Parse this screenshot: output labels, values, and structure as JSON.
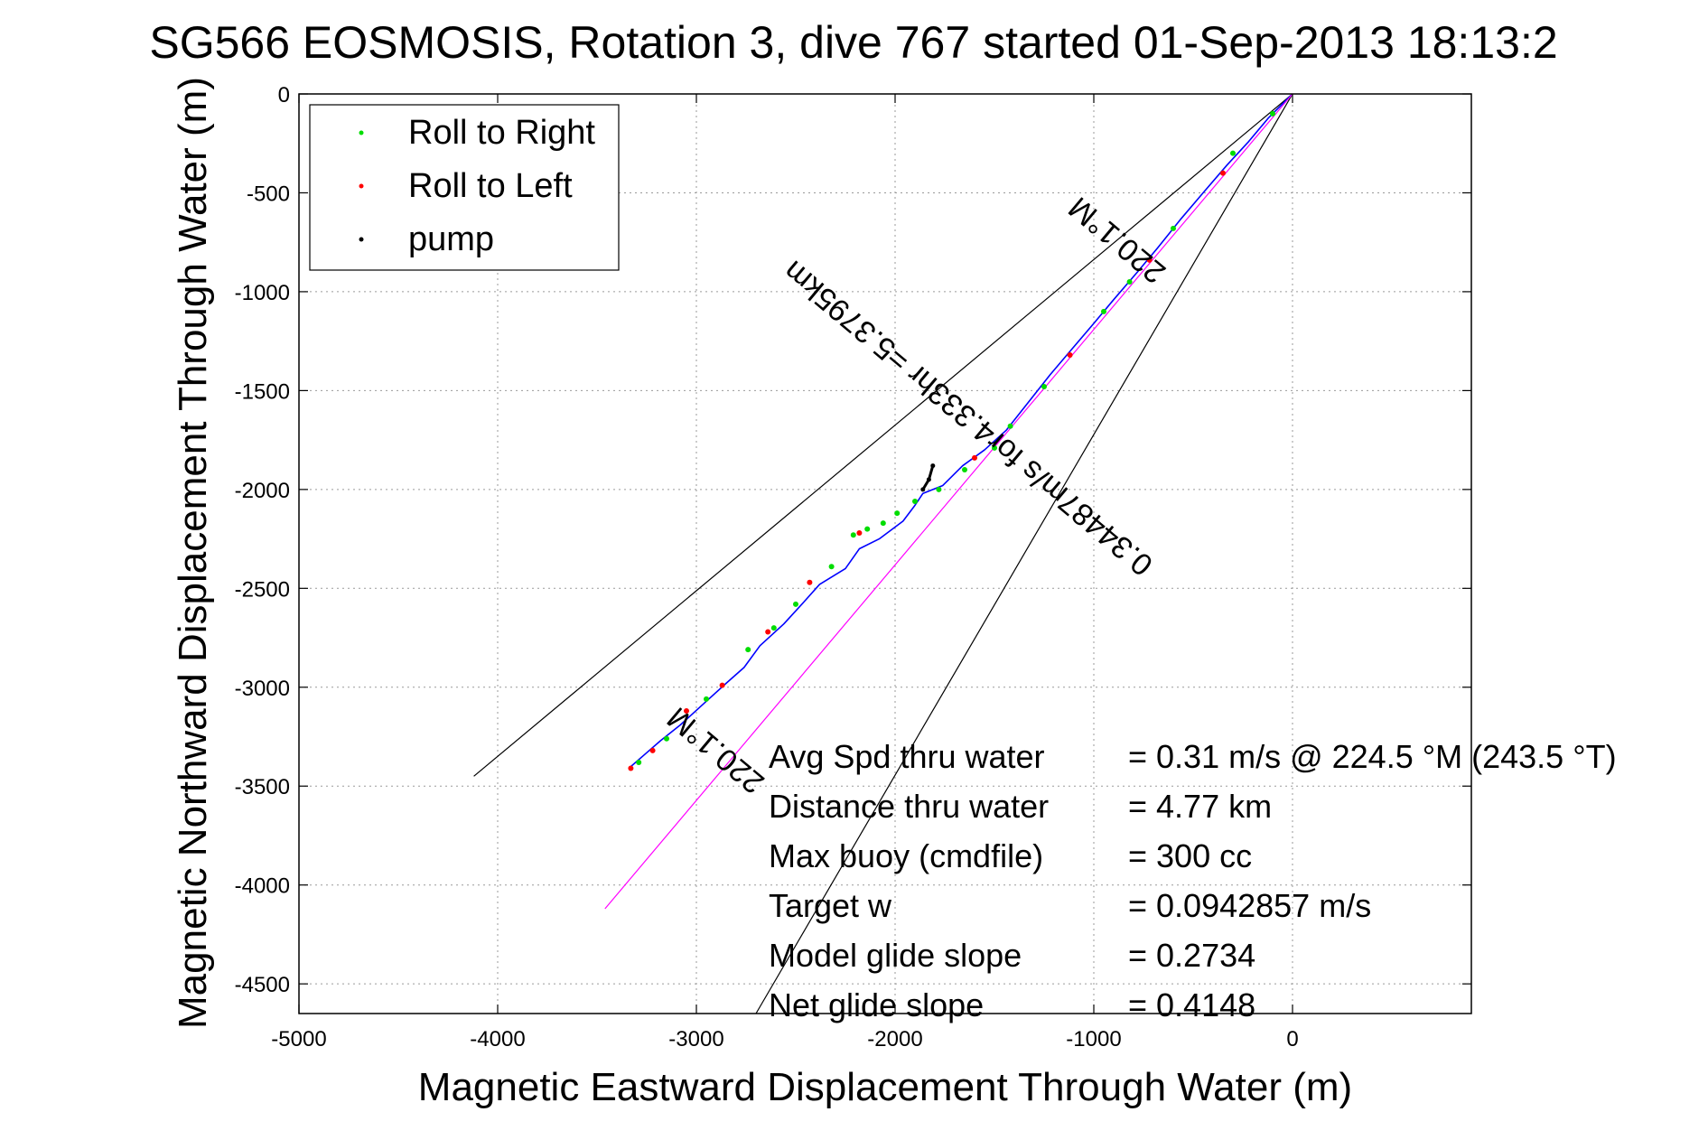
{
  "chart_data": {
    "type": "line",
    "title": "SG566 EOSMOSIS, Rotation 3, dive 767 started 01-Sep-2013 18:13:2",
    "xlabel": "Magnetic Eastward Displacement Through Water (m)",
    "ylabel": "Magnetic Northward Displacement Through Water (m)",
    "xlim": [
      -5000,
      900
    ],
    "ylim": [
      -4650,
      0
    ],
    "xticks": [
      -5000,
      -4000,
      -3000,
      -2000,
      -1000,
      0
    ],
    "xtick_labels": [
      "-5000",
      "-4000",
      "-3000",
      "-2000",
      "-1000",
      "0"
    ],
    "yticks": [
      0,
      -500,
      -1000,
      -1500,
      -2000,
      -2500,
      -3000,
      -3500,
      -4000,
      -4500
    ],
    "ytick_labels": [
      "0",
      "-500",
      "-1000",
      "-1500",
      "-2000",
      "-2500",
      "-3000",
      "-3500",
      "-4000",
      "-4500"
    ],
    "grid": true,
    "legend": {
      "position": "top-left",
      "entries": [
        {
          "label": "Roll to Right",
          "color": "#00dd00"
        },
        {
          "label": "Roll to Left",
          "color": "#ff0000"
        },
        {
          "label": "pump",
          "color": "#000000"
        }
      ]
    },
    "series": [
      {
        "role": "track",
        "color": "#0000ff",
        "x": [
          0,
          -120,
          -220,
          -330,
          -450,
          -560,
          -680,
          -780,
          -900,
          -1000,
          -1110,
          -1220,
          -1330,
          -1440,
          -1550,
          -1660,
          -1760,
          -1860,
          -1900,
          -1960,
          -2080,
          -2180,
          -2250,
          -2380,
          -2460,
          -2560,
          -2680,
          -2760,
          -2850,
          -2960,
          -3080,
          -3180,
          -3260,
          -3340
        ],
        "y": [
          0,
          -120,
          -240,
          -360,
          -500,
          -630,
          -780,
          -900,
          -1040,
          -1160,
          -1290,
          -1420,
          -1560,
          -1700,
          -1800,
          -1880,
          -1980,
          -2020,
          -2080,
          -2160,
          -2250,
          -2300,
          -2400,
          -2480,
          -2570,
          -2680,
          -2790,
          -2900,
          -2980,
          -3080,
          -3190,
          -3270,
          -3340,
          -3410
        ]
      },
      {
        "role": "average-velocity-line",
        "color": "#ff00ff",
        "x": [
          0,
          -3460
        ],
        "y": [
          0,
          -4120
        ]
      },
      {
        "role": "cone-left",
        "color": "#000000",
        "x": [
          0,
          -4120
        ],
        "y": [
          0,
          -3450
        ]
      },
      {
        "role": "cone-right",
        "color": "#000000",
        "x": [
          0,
          -2700
        ],
        "y": [
          0,
          -4650
        ]
      }
    ],
    "markers": {
      "roll_right": {
        "color": "#00dd00",
        "x": [
          -100,
          -300,
          -600,
          -820,
          -950,
          -1250,
          -1420,
          -1500,
          -1650,
          -1780,
          -1900,
          -1990,
          -2060,
          -2140,
          -2210,
          -2320,
          -2500,
          -2610,
          -2740,
          -2950,
          -3150,
          -3290
        ],
        "y": [
          -100,
          -300,
          -680,
          -950,
          -1100,
          -1480,
          -1680,
          -1790,
          -1900,
          -2000,
          -2060,
          -2120,
          -2170,
          -2200,
          -2230,
          -2390,
          -2580,
          -2700,
          -2810,
          -3060,
          -3260,
          -3380
        ]
      },
      "roll_left": {
        "color": "#ff0000",
        "x": [
          -350,
          -720,
          -1120,
          -1600,
          -2180,
          -2430,
          -2640,
          -2870,
          -3050,
          -3220,
          -3330
        ],
        "y": [
          -400,
          -840,
          -1320,
          -1840,
          -2220,
          -2470,
          -2720,
          -2990,
          -3120,
          -3320,
          -3410
        ]
      },
      "pump": {
        "color": "#000000",
        "x": [
          -1860,
          -1830,
          -1810
        ],
        "y": [
          -2000,
          -1950,
          -1880
        ]
      }
    },
    "annotations": [
      {
        "text": "220.1°M",
        "x": -850,
        "y": -700,
        "rotation_deg": 220
      },
      {
        "text": "0.34487m/s for4.333hr =5.3795km",
        "x": -1600,
        "y": -1600,
        "rotation_deg": 220
      },
      {
        "text": "220.1°M",
        "x": -2870,
        "y": -3280,
        "rotation_deg": 220
      }
    ],
    "stats": [
      {
        "label": "Avg Spd thru water",
        "value": "=  0.31 m/s @ 224.5 °M (243.5 °T)"
      },
      {
        "label": "Distance thru water",
        "value": "=  4.77 km"
      },
      {
        "label": "Max buoy (cmdfile)",
        "value": "= 300 cc"
      },
      {
        "label": "Target w",
        "value": "= 0.0942857 m/s"
      },
      {
        "label": "Model glide slope",
        "value": "= 0.2734"
      },
      {
        "label": "Net glide slope",
        "value": "= 0.4148"
      }
    ]
  }
}
